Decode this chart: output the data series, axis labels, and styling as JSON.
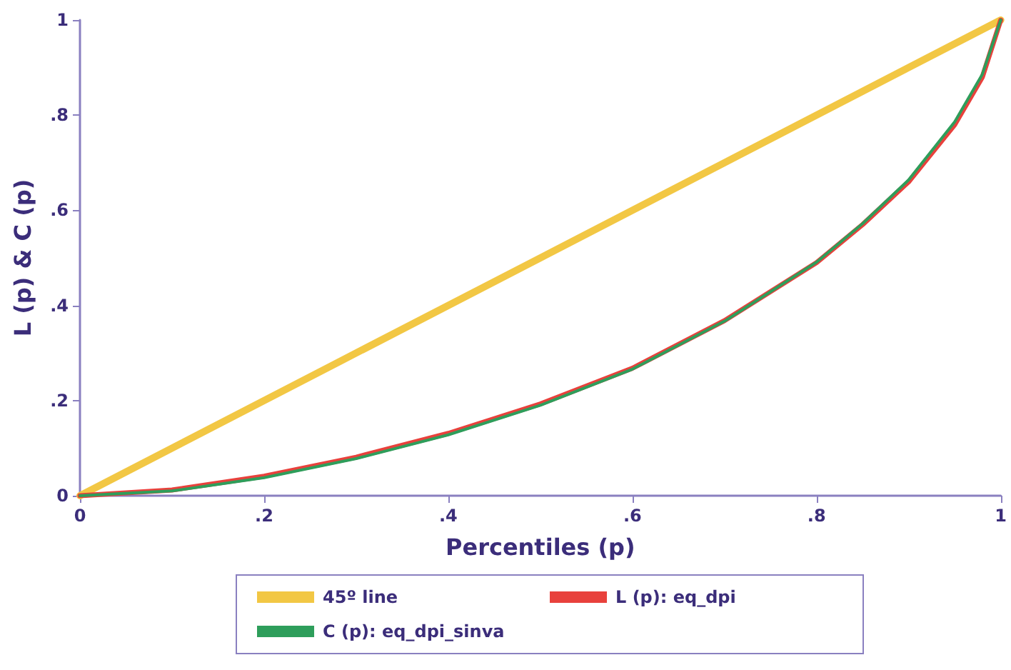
{
  "chart_data": {
    "type": "line",
    "xlabel": "Percentiles (p)",
    "ylabel": "L (p) & C (p)",
    "x": [
      0,
      0.1,
      0.2,
      0.3,
      0.4,
      0.5,
      0.6,
      0.7,
      0.8,
      0.85,
      0.9,
      0.95,
      0.98,
      1
    ],
    "series": [
      {
        "name": "45º line",
        "color": "#f2c744",
        "x": [
          0,
          1
        ],
        "values": [
          0,
          1
        ]
      },
      {
        "name": "L (p): eq_dpi",
        "color": "#e8413c",
        "values": [
          0,
          0.012,
          0.041,
          0.081,
          0.131,
          0.193,
          0.268,
          0.368,
          0.49,
          0.57,
          0.66,
          0.78,
          0.88,
          1
        ]
      },
      {
        "name": "C (p): eq_dpi_sinva",
        "color": "#2e9e5b",
        "values": [
          0,
          0.01,
          0.038,
          0.078,
          0.128,
          0.19,
          0.266,
          0.367,
          0.491,
          0.572,
          0.664,
          0.786,
          0.886,
          1
        ]
      }
    ],
    "xlim": [
      0,
      1
    ],
    "ylim": [
      0,
      1
    ],
    "xticks": [
      0,
      {
        "value": 0.2,
        "label": ".2"
      },
      {
        "value": 0.4,
        "label": ".4"
      },
      {
        "value": 0.6,
        "label": ".6"
      },
      {
        "value": 0.8,
        "label": ".8"
      },
      1
    ],
    "yticks": [
      0,
      {
        "value": 0.2,
        "label": ".2"
      },
      {
        "value": 0.4,
        "label": ".4"
      },
      {
        "value": 0.6,
        "label": ".6"
      },
      {
        "value": 0.8,
        "label": ".8"
      },
      1
    ],
    "grid": false,
    "legend": "bottom",
    "marker": "none",
    "line_style": "solid"
  }
}
